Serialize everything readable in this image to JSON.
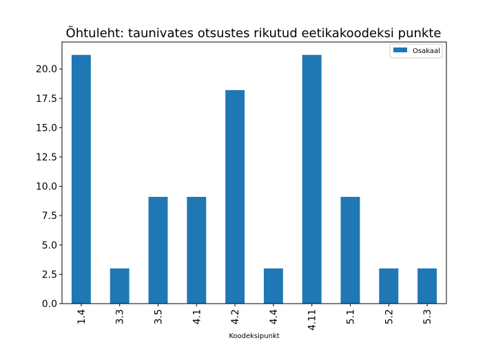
{
  "chart_data": {
    "type": "bar",
    "title": "Õhtuleht: taunivates otsustes rikutud eetikakoodeksi punkte",
    "xlabel": "Koodeksipunkt",
    "ylabel": "",
    "categories": [
      "1.4",
      "3.3",
      "3.5",
      "4.1",
      "4.2",
      "4.4",
      "4.11",
      "5.1",
      "5.2",
      "5.3"
    ],
    "series": [
      {
        "name": "Osakaal",
        "values": [
          21.2,
          3.0,
          9.1,
          9.1,
          18.2,
          3.0,
          21.2,
          9.1,
          3.0,
          3.0
        ]
      }
    ],
    "ylim": [
      0,
      22.3
    ],
    "yticks": [
      "0.0",
      "2.5",
      "5.0",
      "7.5",
      "10.0",
      "12.5",
      "15.0",
      "17.5",
      "20.0"
    ],
    "bar_color": "#1f77b4",
    "legend_placement": "top-right",
    "grid": false
  }
}
